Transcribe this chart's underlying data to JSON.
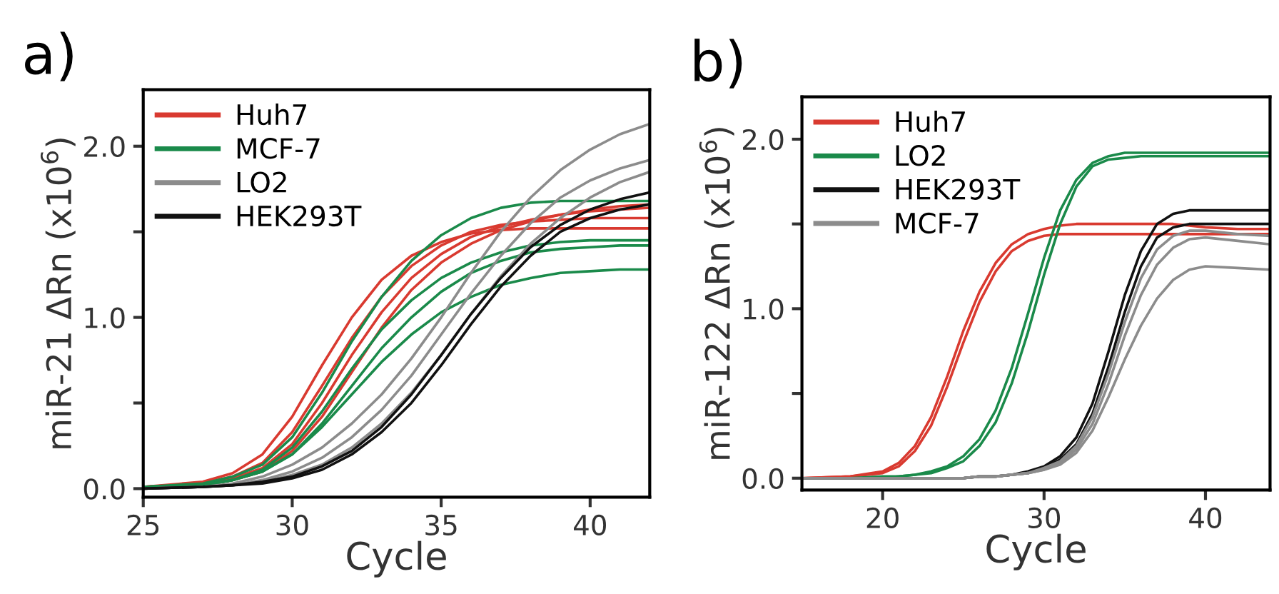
{
  "chart_data": [
    {
      "type": "line",
      "title": "a)",
      "xlabel": "Cycle",
      "ylabel": "miR-21 ΔRn (x10$^{6}$)",
      "legend": "top left",
      "xlim": [
        25,
        42
      ],
      "xticks": [
        25,
        30,
        35,
        40
      ],
      "ylim": [
        -0.05,
        2.33
      ],
      "yticks": [
        {
          "value": 0,
          "label": "0.0"
        },
        {
          "value": 0.5,
          "label": null
        },
        {
          "value": 1,
          "label": "1.0"
        },
        {
          "value": 1.5,
          "label": null
        },
        {
          "value": 2,
          "label": "2.0"
        }
      ],
      "x": [
        25,
        27,
        28,
        29,
        30,
        31,
        32,
        33,
        34,
        35,
        36,
        37,
        38,
        39,
        40,
        41,
        42
      ],
      "series": [
        {
          "name": "Huh7",
          "color": "#d93a30",
          "values": [
            0.01,
            0.04,
            0.09,
            0.2,
            0.42,
            0.72,
            1.0,
            1.22,
            1.36,
            1.44,
            1.49,
            1.51,
            1.52,
            1.52,
            1.52,
            1.52,
            1.52
          ]
        },
        {
          "color": "#d93a30",
          "values": [
            0.01,
            0.03,
            0.07,
            0.15,
            0.33,
            0.6,
            0.88,
            1.12,
            1.3,
            1.42,
            1.5,
            1.54,
            1.56,
            1.57,
            1.58,
            1.58,
            1.58
          ]
        },
        {
          "color": "#d93a30",
          "values": [
            0.01,
            0.03,
            0.06,
            0.12,
            0.26,
            0.5,
            0.78,
            1.03,
            1.23,
            1.37,
            1.47,
            1.53,
            1.57,
            1.6,
            1.62,
            1.63,
            1.64
          ]
        },
        {
          "color": "#d93a30",
          "values": [
            0.01,
            0.02,
            0.05,
            0.1,
            0.22,
            0.42,
            0.68,
            0.94,
            1.16,
            1.32,
            1.43,
            1.51,
            1.56,
            1.6,
            1.63,
            1.65,
            1.66
          ]
        },
        {
          "name": "MCF-7",
          "color": "#1a8a4a",
          "values": [
            0.01,
            0.03,
            0.07,
            0.14,
            0.3,
            0.56,
            0.86,
            1.12,
            1.33,
            1.48,
            1.58,
            1.64,
            1.67,
            1.68,
            1.68,
            1.68,
            1.68
          ]
        },
        {
          "color": "#1a8a4a",
          "values": [
            0.01,
            0.02,
            0.05,
            0.11,
            0.24,
            0.45,
            0.7,
            0.93,
            1.1,
            1.23,
            1.32,
            1.38,
            1.42,
            1.44,
            1.45,
            1.45,
            1.45
          ]
        },
        {
          "color": "#1a8a4a",
          "values": [
            0.01,
            0.02,
            0.05,
            0.1,
            0.2,
            0.38,
            0.6,
            0.82,
            1.0,
            1.15,
            1.26,
            1.33,
            1.38,
            1.4,
            1.41,
            1.42,
            1.42
          ]
        },
        {
          "color": "#1a8a4a",
          "values": [
            0.01,
            0.02,
            0.05,
            0.1,
            0.2,
            0.36,
            0.55,
            0.74,
            0.9,
            1.03,
            1.12,
            1.19,
            1.23,
            1.26,
            1.27,
            1.28,
            1.28
          ]
        },
        {
          "name": "LO2",
          "color": "#8c8c8c",
          "values": [
            0.0,
            0.01,
            0.03,
            0.07,
            0.14,
            0.24,
            0.38,
            0.55,
            0.76,
            1.0,
            1.26,
            1.5,
            1.7,
            1.86,
            1.98,
            2.07,
            2.13
          ]
        },
        {
          "color": "#8c8c8c",
          "values": [
            0.0,
            0.01,
            0.02,
            0.05,
            0.1,
            0.18,
            0.3,
            0.46,
            0.66,
            0.9,
            1.14,
            1.36,
            1.55,
            1.7,
            1.8,
            1.87,
            1.92
          ]
        },
        {
          "color": "#8c8c8c",
          "values": [
            0.0,
            0.01,
            0.02,
            0.04,
            0.08,
            0.14,
            0.24,
            0.38,
            0.56,
            0.78,
            1.02,
            1.24,
            1.43,
            1.58,
            1.7,
            1.79,
            1.85
          ]
        },
        {
          "name": "HEK293T",
          "color": "#111111",
          "values": [
            0.0,
            0.01,
            0.02,
            0.04,
            0.07,
            0.13,
            0.22,
            0.36,
            0.55,
            0.78,
            1.02,
            1.23,
            1.41,
            1.54,
            1.63,
            1.69,
            1.73
          ]
        },
        {
          "color": "#111111",
          "values": [
            0.0,
            0.01,
            0.02,
            0.03,
            0.06,
            0.11,
            0.2,
            0.33,
            0.5,
            0.72,
            0.96,
            1.18,
            1.36,
            1.5,
            1.58,
            1.63,
            1.66
          ]
        }
      ]
    },
    {
      "type": "line",
      "title": "b)",
      "xlabel": "Cycle",
      "ylabel": "miR-122 ΔRn (x10$^{6}$)",
      "legend": "top left",
      "xlim": [
        15,
        44
      ],
      "xticks": [
        20,
        30,
        40
      ],
      "ylim": [
        -0.07,
        2.25
      ],
      "yticks": [
        {
          "value": 0,
          "label": "0.0"
        },
        {
          "value": 0.5,
          "label": null
        },
        {
          "value": 1,
          "label": "1.0"
        },
        {
          "value": 1.5,
          "label": null
        },
        {
          "value": 2,
          "label": "2.0"
        }
      ],
      "x": [
        15,
        18,
        20,
        21,
        22,
        23,
        24,
        25,
        26,
        27,
        28,
        29,
        30,
        31,
        32,
        33,
        34,
        35,
        36,
        37,
        38,
        39,
        40,
        42,
        44
      ],
      "series": [
        {
          "name": "Huh7",
          "color": "#d93a30",
          "values": [
            0,
            0.01,
            0.04,
            0.09,
            0.19,
            0.36,
            0.6,
            0.87,
            1.1,
            1.27,
            1.38,
            1.44,
            1.47,
            1.49,
            1.5,
            1.5,
            1.5,
            1.5,
            1.5,
            1.5,
            1.5,
            1.49,
            1.48,
            1.47,
            1.47
          ]
        },
        {
          "color": "#d93a30",
          "values": [
            0,
            0.01,
            0.03,
            0.07,
            0.16,
            0.31,
            0.54,
            0.8,
            1.04,
            1.22,
            1.34,
            1.4,
            1.43,
            1.44,
            1.44,
            1.44,
            1.44,
            1.44,
            1.44,
            1.44,
            1.44,
            1.44,
            1.44,
            1.44,
            1.44
          ]
        },
        {
          "name": "LO2",
          "color": "#1a8a4a",
          "values": [
            0,
            0,
            0.01,
            0.01,
            0.02,
            0.04,
            0.07,
            0.13,
            0.23,
            0.4,
            0.65,
            0.97,
            1.3,
            1.58,
            1.76,
            1.86,
            1.9,
            1.92,
            1.92,
            1.92,
            1.92,
            1.92,
            1.92,
            1.92,
            1.92
          ]
        },
        {
          "color": "#1a8a4a",
          "values": [
            0,
            0,
            0,
            0.01,
            0.02,
            0.03,
            0.06,
            0.1,
            0.19,
            0.33,
            0.56,
            0.86,
            1.2,
            1.5,
            1.72,
            1.84,
            1.88,
            1.89,
            1.9,
            1.9,
            1.9,
            1.9,
            1.9,
            1.9,
            1.9
          ]
        },
        {
          "name": "HEK293T",
          "color": "#111111",
          "values": [
            0,
            0,
            0,
            0,
            0,
            0,
            0,
            0,
            0.01,
            0.01,
            0.02,
            0.04,
            0.07,
            0.13,
            0.24,
            0.44,
            0.75,
            1.08,
            1.34,
            1.5,
            1.56,
            1.58,
            1.58,
            1.58,
            1.58
          ]
        },
        {
          "color": "#111111",
          "values": [
            0,
            0,
            0,
            0,
            0,
            0,
            0,
            0,
            0.01,
            0.01,
            0.02,
            0.03,
            0.06,
            0.11,
            0.2,
            0.38,
            0.66,
            0.98,
            1.25,
            1.42,
            1.48,
            1.5,
            1.5,
            1.5,
            1.5
          ]
        },
        {
          "name": "MCF-7",
          "color": "#8c8c8c",
          "values": [
            0,
            0,
            0,
            0,
            0,
            0,
            0,
            0,
            0.01,
            0.01,
            0.02,
            0.03,
            0.06,
            0.1,
            0.19,
            0.36,
            0.62,
            0.92,
            1.18,
            1.35,
            1.43,
            1.46,
            1.46,
            1.44,
            1.43
          ]
        },
        {
          "color": "#8c8c8c",
          "values": [
            0,
            0,
            0,
            0,
            0,
            0,
            0,
            0,
            0.01,
            0.01,
            0.02,
            0.03,
            0.05,
            0.09,
            0.17,
            0.32,
            0.56,
            0.84,
            1.08,
            1.26,
            1.36,
            1.41,
            1.42,
            1.4,
            1.38
          ]
        },
        {
          "color": "#8c8c8c",
          "values": [
            0,
            0,
            0,
            0,
            0,
            0,
            0,
            0,
            0.01,
            0.01,
            0.02,
            0.03,
            0.05,
            0.08,
            0.15,
            0.28,
            0.48,
            0.7,
            0.9,
            1.06,
            1.17,
            1.23,
            1.25,
            1.24,
            1.23
          ]
        }
      ]
    }
  ]
}
